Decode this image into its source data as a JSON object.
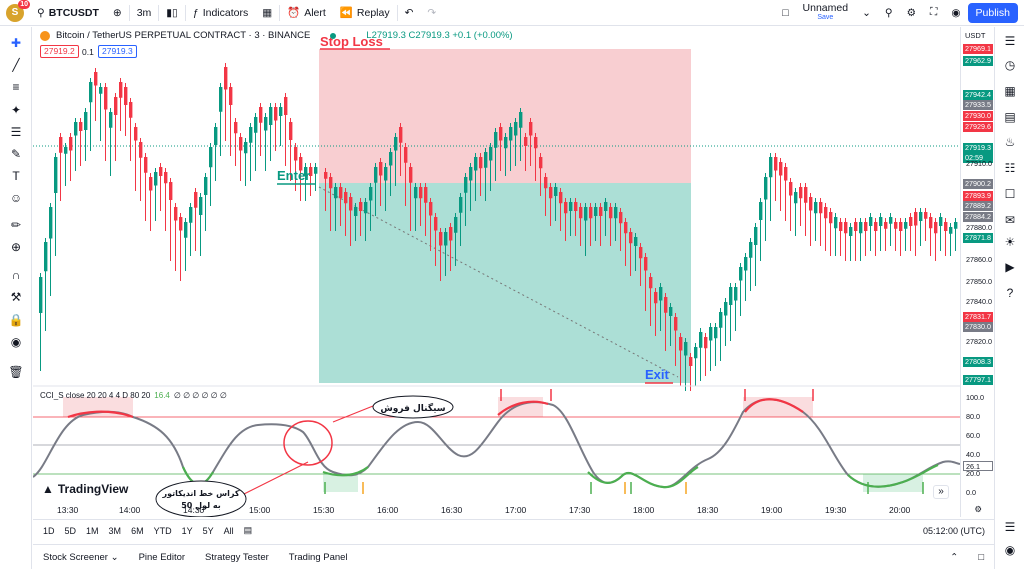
{
  "topbar": {
    "avatar_letter": "S",
    "avatar_badge": "10",
    "symbol": "BTCUSDT",
    "interval": "3m",
    "indicators_label": "Indicators",
    "alert_label": "Alert",
    "replay_label": "Replay",
    "layout_name": "Unnamed",
    "layout_status": "Save",
    "publish_label": "Publish"
  },
  "legend": {
    "title": "Bitcoin / TetherUS PERPETUAL CONTRACT · 3 · BINANCE",
    "ohlc": "L27919.3  C27919.3  +0.1 (+0.00%)",
    "bid": "27919.2",
    "spread": "0.1",
    "ask": "27919.3",
    "indicator": "CCI_S close 20 20 4 4 D 80 20",
    "indicator_value": "16.4",
    "indicator_rest": "∅ ∅ ∅ ∅ ∅ ∅"
  },
  "price_axis": {
    "currency": "USDT",
    "ticks": [
      "27910.0",
      "27880.0",
      "27860.0",
      "27850.0",
      "27840.0",
      "27820.0"
    ],
    "labels": [
      {
        "text": "27969.1",
        "color": "#f23645"
      },
      {
        "text": "27962.9",
        "color": "#089981"
      },
      {
        "text": "27942.4",
        "color": "#089981"
      },
      {
        "text": "27933.5",
        "color": "#787b86"
      },
      {
        "text": "27930.0",
        "color": "#f23645"
      },
      {
        "text": "27929.6",
        "color": "#f23645"
      },
      {
        "text": "27919.3",
        "color": "#089981"
      },
      {
        "text": "02:59",
        "color": "#089981"
      },
      {
        "text": "27900.2",
        "color": "#787b86"
      },
      {
        "text": "27893.9",
        "color": "#f23645"
      },
      {
        "text": "27889.2",
        "color": "#787b86"
      },
      {
        "text": "27884.2",
        "color": "#787b86"
      },
      {
        "text": "27871.8",
        "color": "#089981"
      },
      {
        "text": "27831.7",
        "color": "#f23645"
      },
      {
        "text": "27830.0",
        "color": "#787b86"
      },
      {
        "text": "27808.3",
        "color": "#089981"
      },
      {
        "text": "27797.1",
        "color": "#089981"
      }
    ],
    "osc_ticks": [
      "100.0",
      "80.0",
      "60.0",
      "40.0",
      "20.0",
      "0.0"
    ],
    "osc_current": "26.1"
  },
  "time_axis": [
    "13:30",
    "14:00",
    "14:30",
    "15:00",
    "15:30",
    "16:00",
    "16:30",
    "17:00",
    "17:30",
    "18:00",
    "18:30",
    "19:00",
    "19:30",
    "20:00"
  ],
  "time_now": "05:12:00 (UTC)",
  "ranges": [
    "1D",
    "5D",
    "1M",
    "3M",
    "6M",
    "YTD",
    "1Y",
    "5Y",
    "All"
  ],
  "panel_tabs": [
    "Stock Screener",
    "Pine Editor",
    "Strategy Tester",
    "Trading Panel"
  ],
  "annotations": {
    "stop_loss": "Stop Loss",
    "enter": "Enter",
    "exit": "Exit",
    "sell_signal": "سیگنال فروش",
    "cross_line1": "کراس خط اندیکاتور",
    "cross_line2": "به لول 50"
  },
  "brand": "TradingView",
  "colors": {
    "up": "#089981",
    "down": "#f23645",
    "accent": "#2962ff",
    "stop_zone": "#f7c6c9",
    "target_zone": "#9dd9cf"
  }
}
